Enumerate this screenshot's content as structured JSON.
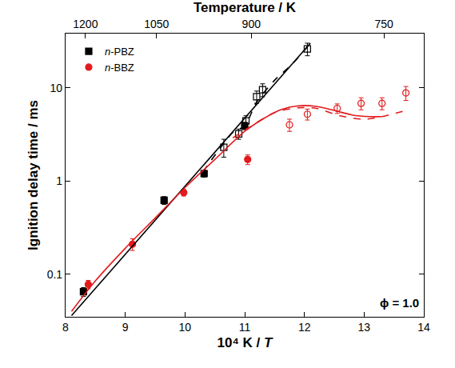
{
  "chart_data": {
    "type": "scatter",
    "x_label": "10⁴ K / T",
    "x2_label": "Temperature / K",
    "y_label": "Ignition delay time / ms",
    "annotation": "ϕ = 1.0",
    "log": "y",
    "grid": false,
    "legend": "upper left",
    "xlim": [
      8,
      14
    ],
    "xticks": [
      8,
      9,
      10,
      11,
      12,
      13,
      14
    ],
    "x2lim": [
      8,
      14
    ],
    "x2ticks": [
      {
        "value": 8.333,
        "label": "1200"
      },
      {
        "value": 9.524,
        "label": "1050"
      },
      {
        "value": 11.111,
        "label": "900"
      },
      {
        "value": 13.333,
        "label": "750"
      }
    ],
    "ylim": [
      0.035,
      38
    ],
    "yticks": [
      0.1,
      1,
      10
    ],
    "series": [
      {
        "name": "n-PBZ",
        "type": "scatter",
        "color": "#000000",
        "marker": "square",
        "x": [
          8.3,
          9.65,
          10.32,
          11.0
        ],
        "values": [
          0.065,
          0.62,
          1.2,
          3.9
        ],
        "errors": [
          0.007,
          0.06,
          0.1,
          0.35
        ]
      },
      {
        "name": "n-BBZ",
        "type": "scatter",
        "color": "#e31a1c",
        "marker": "circle",
        "x": [
          8.38,
          9.12,
          9.98,
          11.05
        ],
        "values": [
          0.078,
          0.21,
          0.75,
          1.7
        ],
        "errors": [
          0.008,
          0.03,
          0.06,
          0.2
        ]
      },
      {
        "type": "scatter",
        "color": "#000000",
        "marker": "square-open",
        "x": [
          10.65,
          10.9,
          11.02,
          11.2,
          11.3,
          12.05
        ],
        "values": [
          2.3,
          3.2,
          4.4,
          8.0,
          9.5,
          26
        ],
        "errors": [
          0.5,
          0.4,
          0.6,
          1.2,
          1.5,
          4
        ]
      },
      {
        "type": "scatter",
        "color": "#e31a1c",
        "marker": "circle-open",
        "x": [
          11.75,
          12.05,
          12.55,
          12.95,
          13.3,
          13.7
        ],
        "values": [
          4.0,
          5.2,
          6.0,
          6.8,
          6.8,
          8.8
        ],
        "errors": [
          0.6,
          0.7,
          0.7,
          1.0,
          1.0,
          1.5
        ]
      },
      {
        "type": "line",
        "color": "#000000",
        "line_style": "solid",
        "x": [
          8.1,
          12.1
        ],
        "values": [
          0.036,
          30
        ]
      },
      {
        "type": "line",
        "color": "#000000",
        "line_style": "dash",
        "x": [
          10.3,
          10.6,
          10.8,
          11.0,
          11.2,
          11.5,
          11.8,
          12.1
        ],
        "values": [
          1.25,
          2.3,
          3.3,
          3.9,
          7.0,
          12,
          18,
          30
        ]
      },
      {
        "type": "line",
        "color": "#e31a1c",
        "line_style": "solid",
        "x": [
          8.1,
          8.5,
          9.0,
          9.5,
          10.0,
          10.5,
          11.0,
          11.3,
          11.6,
          11.9,
          12.2,
          12.5,
          12.8,
          13.1,
          13.3
        ],
        "values": [
          0.04,
          0.085,
          0.19,
          0.4,
          0.85,
          1.7,
          3.4,
          4.6,
          5.8,
          6.4,
          6.3,
          5.7,
          5.1,
          4.9,
          4.9
        ]
      },
      {
        "type": "line",
        "color": "#e31a1c",
        "line_style": "dash",
        "x": [
          10.8,
          11.0,
          11.5,
          11.9,
          12.2,
          12.6,
          13.0,
          13.3,
          13.7
        ],
        "values": [
          2.9,
          3.5,
          5.4,
          6.1,
          6.0,
          5.0,
          4.6,
          4.9,
          5.7
        ]
      }
    ]
  }
}
